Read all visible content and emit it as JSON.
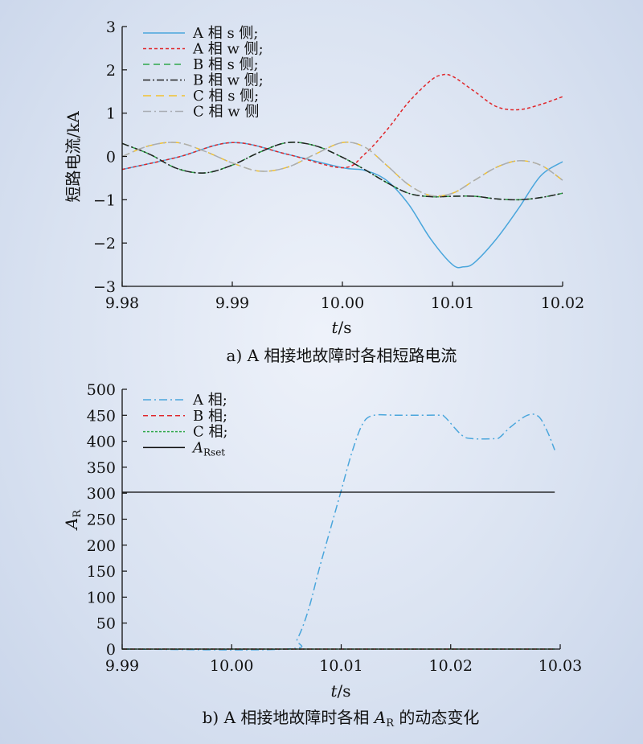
{
  "chart_data": [
    {
      "type": "line",
      "caption": "a) A 相接地故障时各相短路电流",
      "xlabel_italic": "t",
      "xlabel_rest": "/s",
      "ylabel": "短路电流/kA",
      "xlim": [
        9.98,
        10.02
      ],
      "ylim": [
        -3,
        3
      ],
      "xticks": [
        9.98,
        9.99,
        10.0,
        10.01,
        10.02
      ],
      "xtick_labels": [
        "9.98",
        "9.99",
        "10.00",
        "10.01",
        "10.02"
      ],
      "yticks": [
        -3,
        -2,
        -1,
        0,
        1,
        2,
        3
      ],
      "ytick_labels": [
        "−3",
        "−2",
        "−1",
        "0",
        "1",
        "2",
        "3"
      ],
      "legend_position": "top-left",
      "grid": false,
      "series": [
        {
          "name": "A 相 s 侧;",
          "color": "#4aa6dc",
          "dash": "solid",
          "x": [
            9.98,
            9.985,
            9.99,
            9.995,
            10.0,
            10.002,
            10.004,
            10.006,
            10.008,
            10.01,
            10.011,
            10.012,
            10.014,
            10.016,
            10.018,
            10.02
          ],
          "y": [
            -0.3,
            -0.02,
            0.32,
            0.05,
            -0.26,
            -0.32,
            -0.55,
            -1.1,
            -1.9,
            -2.5,
            -2.55,
            -2.45,
            -1.9,
            -1.2,
            -0.45,
            -0.12
          ]
        },
        {
          "name": "A 相 w 侧;",
          "color": "#e0262a",
          "dash": "4,3",
          "x": [
            9.98,
            9.985,
            9.99,
            9.995,
            10.0,
            10.002,
            10.004,
            10.006,
            10.008,
            10.009,
            10.01,
            10.012,
            10.014,
            10.016,
            10.018,
            10.02
          ],
          "y": [
            -0.3,
            -0.02,
            0.32,
            0.05,
            -0.26,
            0.05,
            0.6,
            1.25,
            1.75,
            1.88,
            1.85,
            1.5,
            1.15,
            1.08,
            1.2,
            1.38
          ]
        },
        {
          "name": "B 相 s 侧;",
          "color": "#2fa84a",
          "dash": "8,5",
          "x": [
            9.98,
            9.9825,
            9.985,
            9.9875,
            9.99,
            9.9925,
            9.995,
            9.9975,
            10.0,
            10.002,
            10.004,
            10.006,
            10.008,
            10.01,
            10.012,
            10.014,
            10.016,
            10.018,
            10.02
          ],
          "y": [
            0.3,
            0.05,
            -0.28,
            -0.38,
            -0.2,
            0.1,
            0.32,
            0.25,
            -0.02,
            -0.3,
            -0.6,
            -0.85,
            -0.93,
            -0.92,
            -0.92,
            -0.98,
            -1.0,
            -0.95,
            -0.85
          ]
        },
        {
          "name": "B 相 w 侧;",
          "color": "#222222",
          "dash": "9,3,2,3",
          "x": [
            9.98,
            9.9825,
            9.985,
            9.9875,
            9.99,
            9.9925,
            9.995,
            9.9975,
            10.0,
            10.002,
            10.004,
            10.006,
            10.008,
            10.01,
            10.012,
            10.014,
            10.016,
            10.018,
            10.02
          ],
          "y": [
            0.3,
            0.05,
            -0.28,
            -0.38,
            -0.2,
            0.1,
            0.32,
            0.25,
            -0.02,
            -0.3,
            -0.6,
            -0.85,
            -0.93,
            -0.92,
            -0.92,
            -0.98,
            -1.0,
            -0.95,
            -0.85
          ]
        },
        {
          "name": "C 相 s 侧;",
          "color": "#f2c230",
          "dash": "10,6",
          "x": [
            9.98,
            9.9825,
            9.985,
            9.9875,
            9.99,
            9.9925,
            9.995,
            9.9975,
            10.0,
            10.002,
            10.004,
            10.006,
            10.008,
            10.01,
            10.012,
            10.014,
            10.016,
            10.018,
            10.02
          ],
          "y": [
            0.0,
            0.25,
            0.32,
            0.12,
            -0.15,
            -0.34,
            -0.25,
            0.05,
            0.32,
            0.22,
            -0.2,
            -0.65,
            -0.9,
            -0.85,
            -0.55,
            -0.25,
            -0.1,
            -0.2,
            -0.55
          ]
        },
        {
          "name": "C 相 w 侧",
          "color": "#a9adb3",
          "dash": "10,4,2,4",
          "x": [
            9.98,
            9.9825,
            9.985,
            9.9875,
            9.99,
            9.9925,
            9.995,
            9.9975,
            10.0,
            10.002,
            10.004,
            10.006,
            10.008,
            10.01,
            10.012,
            10.014,
            10.016,
            10.018,
            10.02
          ],
          "y": [
            0.0,
            0.25,
            0.32,
            0.12,
            -0.15,
            -0.34,
            -0.25,
            0.05,
            0.32,
            0.22,
            -0.2,
            -0.65,
            -0.9,
            -0.85,
            -0.55,
            -0.25,
            -0.1,
            -0.2,
            -0.55
          ]
        }
      ]
    },
    {
      "type": "line",
      "caption_pre": "b) A 相接地故障时各相 ",
      "caption_var": "A",
      "caption_sub": "R",
      "caption_post": " 的动态变化",
      "xlabel_italic": "t",
      "xlabel_rest": "/s",
      "ylabel_var": "A",
      "ylabel_sub": "R",
      "xlim": [
        9.99,
        10.03
      ],
      "ylim": [
        0,
        500
      ],
      "xticks": [
        9.99,
        10.0,
        10.01,
        10.02,
        10.03
      ],
      "xtick_labels": [
        "9.99",
        "10.00",
        "10.01",
        "10.02",
        "10.03"
      ],
      "yticks": [
        0,
        50,
        100,
        150,
        200,
        250,
        300,
        350,
        400,
        450,
        500
      ],
      "ytick_labels": [
        "0",
        "50",
        "100",
        "150",
        "200",
        "250",
        "300",
        "350",
        "400",
        "450",
        "500"
      ],
      "legend_position": "top-left",
      "grid": false,
      "series": [
        {
          "name": "A 相;",
          "color": "#4aa6dc",
          "dash": "10,4,2,4",
          "x": [
            9.99,
            10.005,
            10.006,
            10.007,
            10.008,
            10.009,
            10.01,
            10.011,
            10.012,
            10.013,
            10.015,
            10.017,
            10.019,
            10.0195,
            10.021,
            10.022,
            10.024,
            10.0245,
            10.0255,
            10.027,
            10.028,
            10.0288,
            10.0295
          ],
          "y": [
            0,
            0,
            20,
            75,
            155,
            230,
            305,
            380,
            435,
            450,
            450,
            450,
            450,
            446,
            412,
            405,
            405,
            408,
            428,
            450,
            448,
            420,
            383
          ]
        },
        {
          "name": "B 相;",
          "color": "#e0262a",
          "dash": "6,4",
          "x": [
            9.99,
            10.0295
          ],
          "y": [
            0,
            0
          ]
        },
        {
          "name": "C 相;",
          "color": "#2fa84a",
          "dash": "3,2",
          "x": [
            9.99,
            10.0295
          ],
          "y": [
            0,
            0
          ]
        },
        {
          "name_var": "A",
          "name_sub": "Rset",
          "color": "#111111",
          "dash": "solid",
          "x": [
            9.99,
            10.0295
          ],
          "y": [
            302,
            302
          ]
        }
      ]
    }
  ]
}
